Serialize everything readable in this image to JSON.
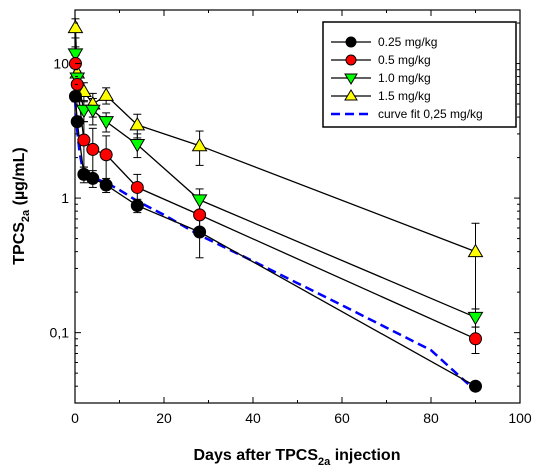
{
  "chart_data": {
    "type": "scatter",
    "title": "",
    "xlabel": {
      "main": "Days after TPCS",
      "sub": "2a",
      "tail": " injection"
    },
    "ylabel": {
      "main": "TPCS",
      "sub": "2a",
      "tail": " (µg/mL)"
    },
    "xlim": [
      0,
      100
    ],
    "ylim": [
      0.03,
      25
    ],
    "y_scale": "log",
    "grid": false,
    "legend_position": "top-right",
    "x_ticks": [
      "0",
      "20",
      "40",
      "60",
      "80",
      "100"
    ],
    "y_ticks": [
      {
        "value": 0.1,
        "label": "0,1"
      },
      {
        "value": 1,
        "label": "1"
      },
      {
        "value": 10,
        "label": "10"
      }
    ],
    "series": [
      {
        "name": "1.5 mg/kg",
        "marker": "triangle-up",
        "color": "#ffff00",
        "x": [
          0.1,
          0.5,
          2,
          4,
          7,
          14,
          28,
          90
        ],
        "y": [
          18.5,
          8.5,
          6.2,
          5.0,
          5.8,
          3.5,
          2.45,
          0.4
        ],
        "error": [
          3.0,
          1.5,
          1.0,
          1.0,
          0.8,
          0.7,
          0.7,
          0.25
        ]
      },
      {
        "name": "1.0  mg/kg",
        "marker": "triangle-down",
        "color": "#00ff00",
        "x": [
          0.1,
          0.5,
          2,
          4,
          7,
          14,
          28,
          90
        ],
        "y": [
          11.8,
          7.8,
          4.5,
          4.5,
          3.7,
          2.5,
          0.97,
          0.13
        ],
        "error": [
          1.5,
          1.0,
          0.8,
          1.0,
          0.6,
          0.5,
          0.2,
          0.02
        ]
      },
      {
        "name": "0.5 mg/kg",
        "marker": "circle",
        "color": "#ff0000",
        "x": [
          0.1,
          0.5,
          2,
          4,
          7,
          14,
          28,
          90
        ],
        "y": [
          10.0,
          7.0,
          2.7,
          2.3,
          2.1,
          1.2,
          0.75,
          0.09
        ],
        "error": [
          1.5,
          1.0,
          1.0,
          1.0,
          0.8,
          0.3,
          0.2,
          0.02
        ]
      },
      {
        "name": "0.25 mg/kg",
        "marker": "circle",
        "color": "#000000",
        "x": [
          0.1,
          0.5,
          2,
          4,
          7,
          14,
          28,
          90
        ],
        "y": [
          5.7,
          3.7,
          1.5,
          1.4,
          1.25,
          0.88,
          0.56,
          0.04
        ],
        "error": [
          0.5,
          0.3,
          0.2,
          0.2,
          0.15,
          0.1,
          0.2,
          0.002
        ]
      }
    ],
    "fit": {
      "name": "curve fit 0,25 mg/kg",
      "color": "#0000ff",
      "x": [
        0,
        0.5,
        1,
        1.5,
        2,
        3,
        4,
        5,
        7,
        10,
        14,
        20,
        28,
        40,
        60,
        80,
        90
      ],
      "y": [
        5.4,
        3.2,
        2.2,
        1.8,
        1.65,
        1.5,
        1.42,
        1.38,
        1.3,
        1.15,
        0.95,
        0.75,
        0.53,
        0.34,
        0.16,
        0.074,
        0.037
      ]
    }
  }
}
